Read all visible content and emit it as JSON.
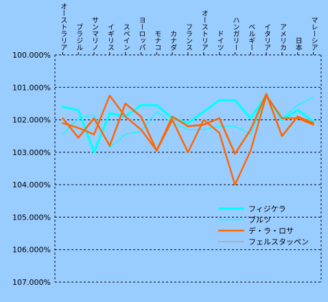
{
  "chart_data": {
    "type": "line",
    "title": "",
    "xlabel": "",
    "ylabel": "",
    "categories": [
      "オーストラリア",
      "ブラジル",
      "サンマリノ",
      "イギリス",
      "スペイン",
      "ヨーロッパ",
      "モナコ",
      "カナダ",
      "フランス",
      "オーストリア",
      "ドイツ",
      "ハンガリー",
      "ベルギー",
      "イタリア",
      "アメリカ",
      "日本",
      "マレーシア"
    ],
    "y_tick_labels": [
      "100.000%",
      "101.000%",
      "102.000%",
      "103.000%",
      "104.000%",
      "105.000%",
      "106.000%",
      "107.000%"
    ],
    "ylim": [
      100,
      107
    ],
    "y_inverted": true,
    "grid": "horizontal dashed",
    "legend_position": "bottom-right inside plot",
    "series": [
      {
        "name": "フィジケラ",
        "color": "#00ffff",
        "width": 3.2,
        "dashed": false,
        "values": [
          101.6,
          101.7,
          103.0,
          101.8,
          101.9,
          101.55,
          101.55,
          101.95,
          102.1,
          101.75,
          101.4,
          101.4,
          101.95,
          101.25,
          102.0,
          101.7,
          102.05
        ]
      },
      {
        "name": "ブルツ",
        "color": "#00ffff",
        "width": 1.2,
        "dashed": false,
        "values": [
          102.45,
          101.95,
          101.85,
          102.85,
          102.45,
          102.35,
          101.75,
          102.1,
          102.3,
          102.3,
          102.2,
          102.2,
          102.45,
          101.25,
          101.95,
          101.55,
          101.3
        ]
      },
      {
        "name": "デ・ラ・ロサ",
        "color": "#ff6600",
        "width": 2.6,
        "dashed": false,
        "values": [
          101.95,
          102.55,
          101.95,
          102.8,
          101.5,
          101.9,
          102.95,
          101.9,
          102.2,
          102.15,
          101.95,
          103.05,
          102.3,
          101.2,
          102.5,
          101.9,
          102.1
        ]
      },
      {
        "name": "フェルスタッペン",
        "color": "#ff6600",
        "width": 1.3,
        "dashed": true,
        "values": [
          102.1,
          102.25,
          102.45,
          101.25,
          101.9,
          102.3,
          102.95,
          102.0,
          103.0,
          102.0,
          102.4,
          104.0,
          102.95,
          101.25,
          101.95,
          101.95,
          102.15
        ]
      }
    ]
  }
}
